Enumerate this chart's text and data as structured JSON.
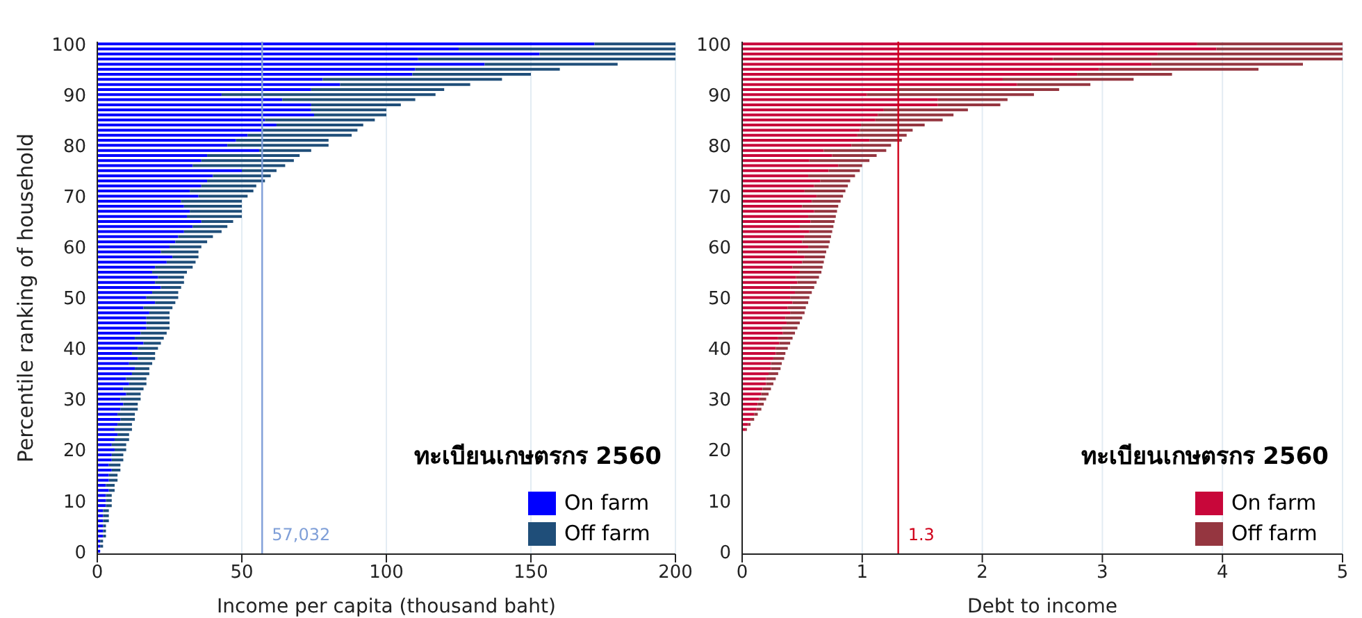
{
  "chart_data": [
    {
      "type": "bar",
      "orientation": "horizontal",
      "stacked": true,
      "xlabel": "Income per capita (thousand baht)",
      "ylabel": "Percentile ranking of household",
      "legend_title": "ทะเบียนเกษตรกร 2560",
      "legend": "bottom right",
      "grid": "x",
      "categories": [
        "100",
        null,
        null,
        null,
        null,
        null,
        null,
        null,
        null,
        null,
        "90",
        null,
        null,
        null,
        null,
        null,
        null,
        null,
        null,
        null,
        "80",
        null,
        null,
        null,
        null,
        null,
        null,
        null,
        null,
        null,
        "70",
        null,
        null,
        null,
        null,
        null,
        null,
        null,
        null,
        null,
        "60",
        null,
        null,
        null,
        null,
        null,
        null,
        null,
        null,
        null,
        "50",
        null,
        null,
        null,
        null,
        null,
        null,
        null,
        null,
        null,
        "40",
        null,
        null,
        null,
        null,
        null,
        null,
        null,
        null,
        null,
        "30",
        null,
        null,
        null,
        null,
        null,
        null,
        null,
        null,
        null,
        "20",
        null,
        null,
        null,
        null,
        null,
        null,
        null,
        null,
        null,
        "10",
        null,
        null,
        null,
        null,
        null,
        null,
        null,
        null,
        null,
        "0"
      ],
      "series": [
        {
          "name": "On farm",
          "color": "#0000ff",
          "values": [
            172,
            125,
            153,
            111,
            134,
            110,
            109,
            78,
            84,
            74,
            43,
            64,
            74,
            74,
            75,
            58,
            62,
            57,
            52,
            48,
            45,
            56,
            38,
            36,
            33,
            50,
            40,
            38,
            36,
            32,
            35,
            29,
            30,
            32,
            31,
            36,
            33,
            30,
            28,
            27,
            25,
            22,
            26,
            24,
            20,
            19,
            21,
            20,
            22,
            19,
            17,
            20,
            16,
            18,
            17,
            17,
            17,
            15,
            13,
            16,
            14,
            12,
            14,
            11,
            13,
            12,
            10,
            11,
            9,
            10,
            8,
            9,
            8,
            7,
            8,
            7,
            6,
            7,
            6,
            5,
            6,
            5,
            5,
            4,
            5,
            4,
            4,
            3,
            4,
            3,
            3,
            3,
            2,
            2,
            2,
            2,
            2,
            2,
            1,
            1,
            1
          ]
        },
        {
          "name": "Off farm",
          "color": "#1f4e79",
          "values": [
            28,
            75,
            47,
            89,
            46,
            50,
            41,
            62,
            45,
            46,
            74,
            46,
            31,
            26,
            25,
            38,
            30,
            33,
            36,
            32,
            35,
            18,
            32,
            32,
            32,
            12,
            20,
            20,
            19,
            22,
            17,
            21,
            20,
            18,
            19,
            11,
            12,
            13,
            12,
            11,
            11,
            13,
            9,
            10,
            13,
            12,
            9,
            10,
            7,
            9,
            11,
            7,
            10,
            7,
            8,
            8,
            8,
            9,
            10,
            6,
            7,
            8,
            6,
            8,
            5,
            6,
            7,
            6,
            7,
            5,
            7,
            5,
            6,
            6,
            5,
            5,
            6,
            4,
            5,
            5,
            4,
            4,
            4,
            4,
            3,
            3,
            3,
            3,
            2,
            2,
            2,
            2,
            2,
            2,
            2,
            1,
            1,
            1,
            1,
            1,
            null
          ]
        }
      ],
      "xlim": [
        0,
        200
      ],
      "xticks": [
        0,
        50,
        100,
        150,
        200
      ],
      "ref_lines": [
        {
          "axis": "x",
          "value": 57.032,
          "label": "57,032",
          "color": "#7f9fd8"
        }
      ]
    },
    {
      "type": "bar",
      "orientation": "horizontal",
      "stacked": true,
      "xlabel": "Debt to income",
      "legend_title": "ทะเบียนเกษตรกร 2560",
      "legend": "bottom right",
      "grid": "x",
      "categories": [
        "100",
        null,
        null,
        null,
        null,
        null,
        null,
        null,
        null,
        null,
        "90",
        null,
        null,
        null,
        null,
        null,
        null,
        null,
        null,
        null,
        "80",
        null,
        null,
        null,
        null,
        null,
        null,
        null,
        null,
        null,
        "70",
        null,
        null,
        null,
        null,
        null,
        null,
        null,
        null,
        null,
        "60",
        null,
        null,
        null,
        null,
        null,
        null,
        null,
        null,
        null,
        "50",
        null,
        null,
        null,
        null,
        null,
        null,
        null,
        null,
        null,
        "40",
        null,
        null,
        null,
        null,
        null,
        null,
        null,
        null,
        null,
        "30",
        null,
        null,
        null,
        null,
        null,
        null,
        null,
        null,
        null,
        "20",
        null,
        null,
        null,
        null,
        null,
        null,
        null,
        null,
        null,
        "10",
        null,
        null,
        null,
        null,
        null,
        null,
        null,
        null,
        null,
        "0"
      ],
      "series": [
        {
          "name": "On farm",
          "color": "#c8073a",
          "values": [
            3.79,
            3.95,
            3.46,
            2.59,
            3.41,
            2.97,
            2.79,
            2.17,
            2.29,
            1.28,
            1.04,
            1.63,
            1.63,
            1.18,
            1.13,
            1.11,
            0.99,
            0.98,
            0.96,
            1.06,
            0.91,
            0.68,
            0.75,
            0.56,
            0.8,
            0.72,
            0.55,
            0.65,
            0.6,
            0.52,
            0.62,
            0.58,
            0.5,
            0.6,
            0.55,
            0.57,
            0.48,
            0.56,
            0.52,
            0.5,
            0.55,
            0.46,
            0.52,
            0.5,
            0.42,
            0.48,
            0.45,
            0.46,
            0.4,
            0.44,
            0.4,
            0.42,
            0.38,
            0.4,
            0.36,
            0.37,
            0.33,
            0.34,
            0.3,
            0.31,
            0.28,
            0.28,
            0.26,
            0.24,
            0.24,
            0.22,
            0.2,
            0.2,
            0.17,
            0.16,
            0.14,
            0.13,
            0.12,
            0.1,
            0.07,
            0.05,
            0.03,
            null,
            null,
            null,
            null,
            null,
            null,
            null,
            null,
            null,
            null,
            null,
            null,
            null,
            null,
            null,
            null,
            null,
            null,
            null,
            null,
            null,
            null,
            null,
            null
          ]
        },
        {
          "name": "Off farm",
          "color": "#953640",
          "values": [
            1.21,
            1.05,
            1.54,
            2.41,
            1.26,
            1.33,
            0.79,
            1.09,
            0.61,
            1.36,
            1.39,
            0.58,
            0.52,
            0.7,
            0.63,
            0.56,
            0.53,
            0.44,
            0.41,
            0.27,
            0.33,
            0.52,
            0.37,
            0.5,
            0.2,
            0.26,
            0.39,
            0.25,
            0.28,
            0.34,
            0.22,
            0.24,
            0.3,
            0.19,
            0.23,
            0.2,
            0.28,
            0.19,
            0.22,
            0.23,
            0.17,
            0.24,
            0.17,
            0.18,
            0.25,
            0.18,
            0.19,
            0.16,
            0.2,
            0.14,
            0.16,
            0.13,
            0.15,
            0.12,
            0.14,
            0.11,
            0.13,
            0.1,
            0.12,
            0.09,
            0.1,
            0.08,
            0.09,
            0.09,
            0.08,
            0.08,
            0.08,
            0.06,
            0.07,
            0.06,
            0.06,
            0.05,
            0.04,
            0.03,
            0.03,
            0.02,
            0.01,
            null,
            null,
            null,
            null,
            null,
            null,
            null,
            null,
            null,
            null,
            null,
            null,
            null,
            null,
            null,
            null,
            null,
            null,
            null,
            null,
            null,
            null,
            null,
            null
          ]
        }
      ],
      "xlim": [
        0,
        5
      ],
      "xticks": [
        0,
        1,
        2,
        3,
        4,
        5
      ],
      "ref_lines": [
        {
          "axis": "x",
          "value": 1.3,
          "label": "1.3",
          "color": "#d0021b"
        }
      ]
    }
  ]
}
